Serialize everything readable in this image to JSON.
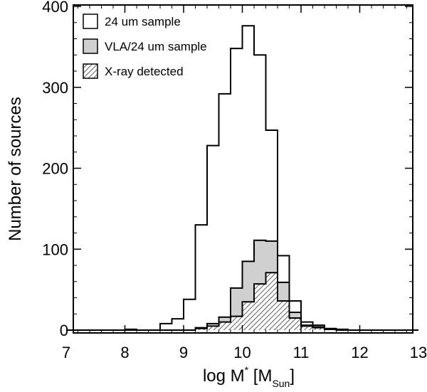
{
  "chart_data": {
    "type": "histogram",
    "xlabel": {
      "main": "log M",
      "sup": "*",
      "bracket_open": " [M",
      "sub": "Sun",
      "bracket_close": "]"
    },
    "ylabel": "Number of sources",
    "xlim": [
      7,
      13
    ],
    "ylim": [
      0,
      400
    ],
    "xticks": [
      7,
      8,
      9,
      10,
      11,
      12,
      13
    ],
    "yticks": [
      0,
      100,
      200,
      300,
      400
    ],
    "x_minor_step": 0.2,
    "y_minor_step": 20,
    "bin_edges": [
      7.0,
      7.2,
      7.4,
      7.6,
      7.8,
      8.0,
      8.2,
      8.4,
      8.6,
      8.8,
      9.0,
      9.2,
      9.4,
      9.6,
      9.8,
      10.0,
      10.2,
      10.4,
      10.6,
      10.8,
      11.0,
      11.2,
      11.4,
      11.6,
      11.8,
      12.0,
      12.2,
      12.4,
      12.6,
      12.8,
      13.0
    ],
    "series": [
      {
        "name": "24 um sample",
        "style": "open",
        "values": [
          0,
          0,
          0,
          0,
          0,
          1,
          0,
          0,
          8,
          14,
          38,
          130,
          228,
          292,
          348,
          376,
          340,
          247,
          92,
          36,
          10,
          6,
          2,
          1,
          0,
          0,
          0,
          0,
          0,
          0
        ]
      },
      {
        "name": "VLA/24 um sample",
        "style": "filled",
        "fill": "#d0d0d0",
        "values": [
          0,
          0,
          0,
          0,
          0,
          0,
          0,
          0,
          0,
          0,
          0,
          3,
          8,
          16,
          52,
          85,
          111,
          110,
          59,
          22,
          6,
          4,
          1,
          0,
          0,
          0,
          0,
          0,
          0,
          0
        ]
      },
      {
        "name": "X-ray detected",
        "style": "hatched",
        "values": [
          0,
          0,
          0,
          0,
          0,
          0,
          0,
          0,
          0,
          0,
          0,
          2,
          5,
          10,
          17,
          35,
          57,
          71,
          36,
          15,
          5,
          3,
          1,
          0,
          0,
          0,
          0,
          0,
          0,
          0
        ]
      }
    ],
    "legend": {
      "position": "top-left",
      "entries": [
        "24 um sample",
        "VLA/24 um sample",
        "X-ray detected"
      ]
    }
  }
}
